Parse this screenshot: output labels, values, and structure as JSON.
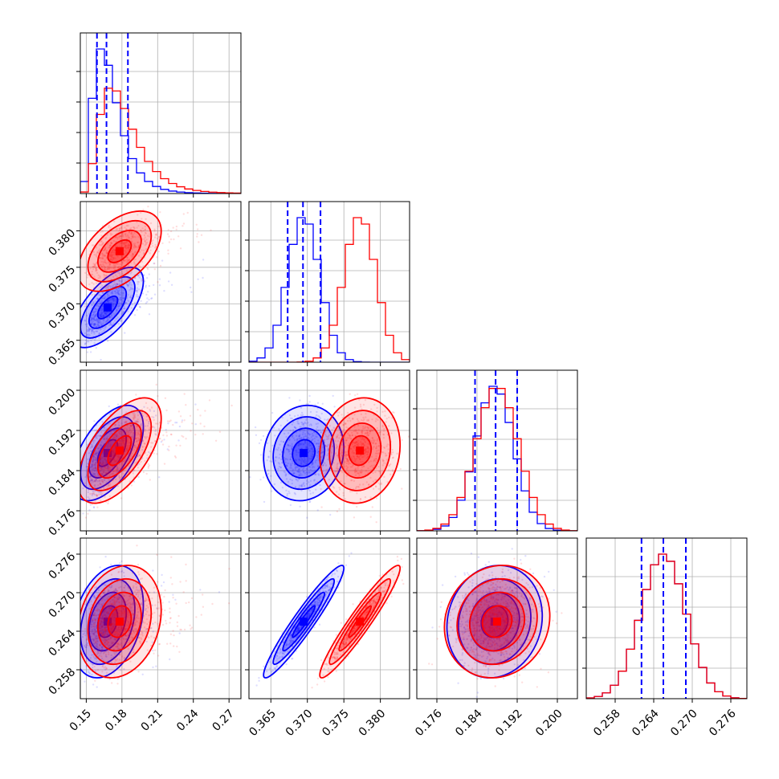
{
  "chart_data": {
    "type": "corner",
    "grid": true,
    "colors": {
      "series_a": "#0000ff",
      "series_b": "#ff0000",
      "grid": "#b0b0b0"
    },
    "parameters": [
      {
        "id": "p1",
        "range": [
          0.145,
          0.28
        ],
        "ticks": [
          0.15,
          0.18,
          0.21,
          0.24,
          0.27
        ],
        "tick_labels": [
          "0.15",
          "0.18",
          "0.21",
          "0.24",
          "0.27"
        ]
      },
      {
        "id": "p2",
        "range": [
          0.362,
          0.384
        ],
        "ticks": [
          0.365,
          0.37,
          0.375,
          0.38
        ],
        "tick_labels": [
          "0.365",
          "0.370",
          "0.375",
          "0.380"
        ]
      },
      {
        "id": "p3",
        "range": [
          0.172,
          0.204
        ],
        "ticks": [
          0.176,
          0.184,
          0.192,
          0.2
        ],
        "tick_labels": [
          "0.176",
          "0.184",
          "0.192",
          "0.200"
        ]
      },
      {
        "id": "p4",
        "range": [
          0.2535,
          0.2785
        ],
        "ticks": [
          0.258,
          0.264,
          0.27,
          0.276
        ],
        "tick_labels": [
          "0.258",
          "0.264",
          "0.270",
          "0.276"
        ]
      }
    ],
    "series": [
      {
        "color": "blue",
        "means": [
          0.168,
          0.3695,
          0.1875,
          0.2655
        ],
        "stds": [
          0.012,
          0.0022,
          0.0038,
          0.0035
        ],
        "correlations": [
          [
            1,
            0.65,
            0.55,
            0.3
          ],
          [
            0.65,
            1,
            0.1,
            0.95
          ],
          [
            0.55,
            0.1,
            1,
            0.1
          ],
          [
            0.3,
            0.95,
            0.1,
            1
          ]
        ],
        "quantile_lines": [
          [
            0.159,
            0.167,
            0.185
          ],
          [
            0.3673,
            0.3694,
            0.3718
          ],
          [
            0.1836,
            0.1877,
            0.192
          ],
          [
            0.2621,
            0.2655,
            0.269
          ]
        ]
      },
      {
        "color": "red",
        "means": [
          0.178,
          0.3772,
          0.188,
          0.2655
        ],
        "stds": [
          0.014,
          0.0022,
          0.0042,
          0.0035
        ],
        "correlations": [
          [
            1,
            0.5,
            0.6,
            0.2
          ],
          [
            0.5,
            1,
            0.1,
            0.95
          ],
          [
            0.6,
            0.1,
            1,
            0.1
          ],
          [
            0.2,
            0.95,
            0.1,
            1
          ]
        ]
      }
    ]
  }
}
